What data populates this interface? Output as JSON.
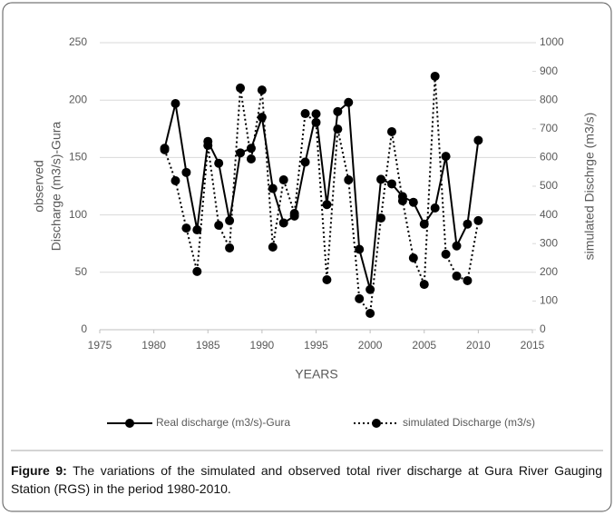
{
  "chart_data": {
    "type": "line",
    "y_label": [
      "observed",
      "Discharge (m3/s)-Gura"
    ],
    "y2_label": "simulated Dischrge (m3/s)",
    "x_label": "YEARS",
    "x": [
      1981,
      1982,
      1983,
      1984,
      1985,
      1986,
      1987,
      1988,
      1989,
      1990,
      1991,
      1992,
      1993,
      1994,
      1995,
      1996,
      1997,
      1998,
      1999,
      2000,
      2001,
      2002,
      2003,
      2004,
      2005,
      2006,
      2007,
      2008,
      2009,
      2010
    ],
    "series": [
      {
        "name": "Real discharge (m3/s)-Gura",
        "color": "#000000",
        "dash": "solid",
        "values": [
          158,
          197,
          137,
          87,
          164,
          145,
          95,
          154,
          158,
          185,
          123,
          93,
          99,
          146,
          188,
          109,
          190,
          198,
          70,
          35,
          131,
          127,
          116,
          111,
          92,
          106,
          151,
          73,
          92,
          165
        ]
      },
      {
        "name": "simulated Discharge (m3/s)",
        "color": "#000000",
        "dash": "dotted",
        "axis": "y2",
        "values": [
          627,
          519,
          354,
          203,
          642,
          364,
          285,
          842,
          595,
          835,
          288,
          522,
          405,
          753,
          722,
          174,
          699,
          522,
          108,
          57,
          389,
          690,
          449,
          250,
          158,
          883,
          263,
          187,
          171,
          380
        ]
      }
    ],
    "xlim": [
      1975,
      2015
    ],
    "xticks": [
      1975,
      1980,
      1985,
      1990,
      1995,
      2000,
      2005,
      2010,
      2015
    ],
    "ylim": [
      0,
      250
    ],
    "yticks": [
      0,
      50,
      100,
      150,
      200,
      250
    ],
    "y2lim": [
      0,
      1000
    ],
    "y2ticks": [
      0,
      100,
      200,
      300,
      400,
      500,
      600,
      700,
      800,
      900,
      1000
    ],
    "grid": true,
    "legend": "bottom"
  },
  "figure_label": "Figure 9:",
  "caption": "The variations of the simulated and observed total river discharge at Gura River Gauging Station (RGS) in the period 1980-2010."
}
